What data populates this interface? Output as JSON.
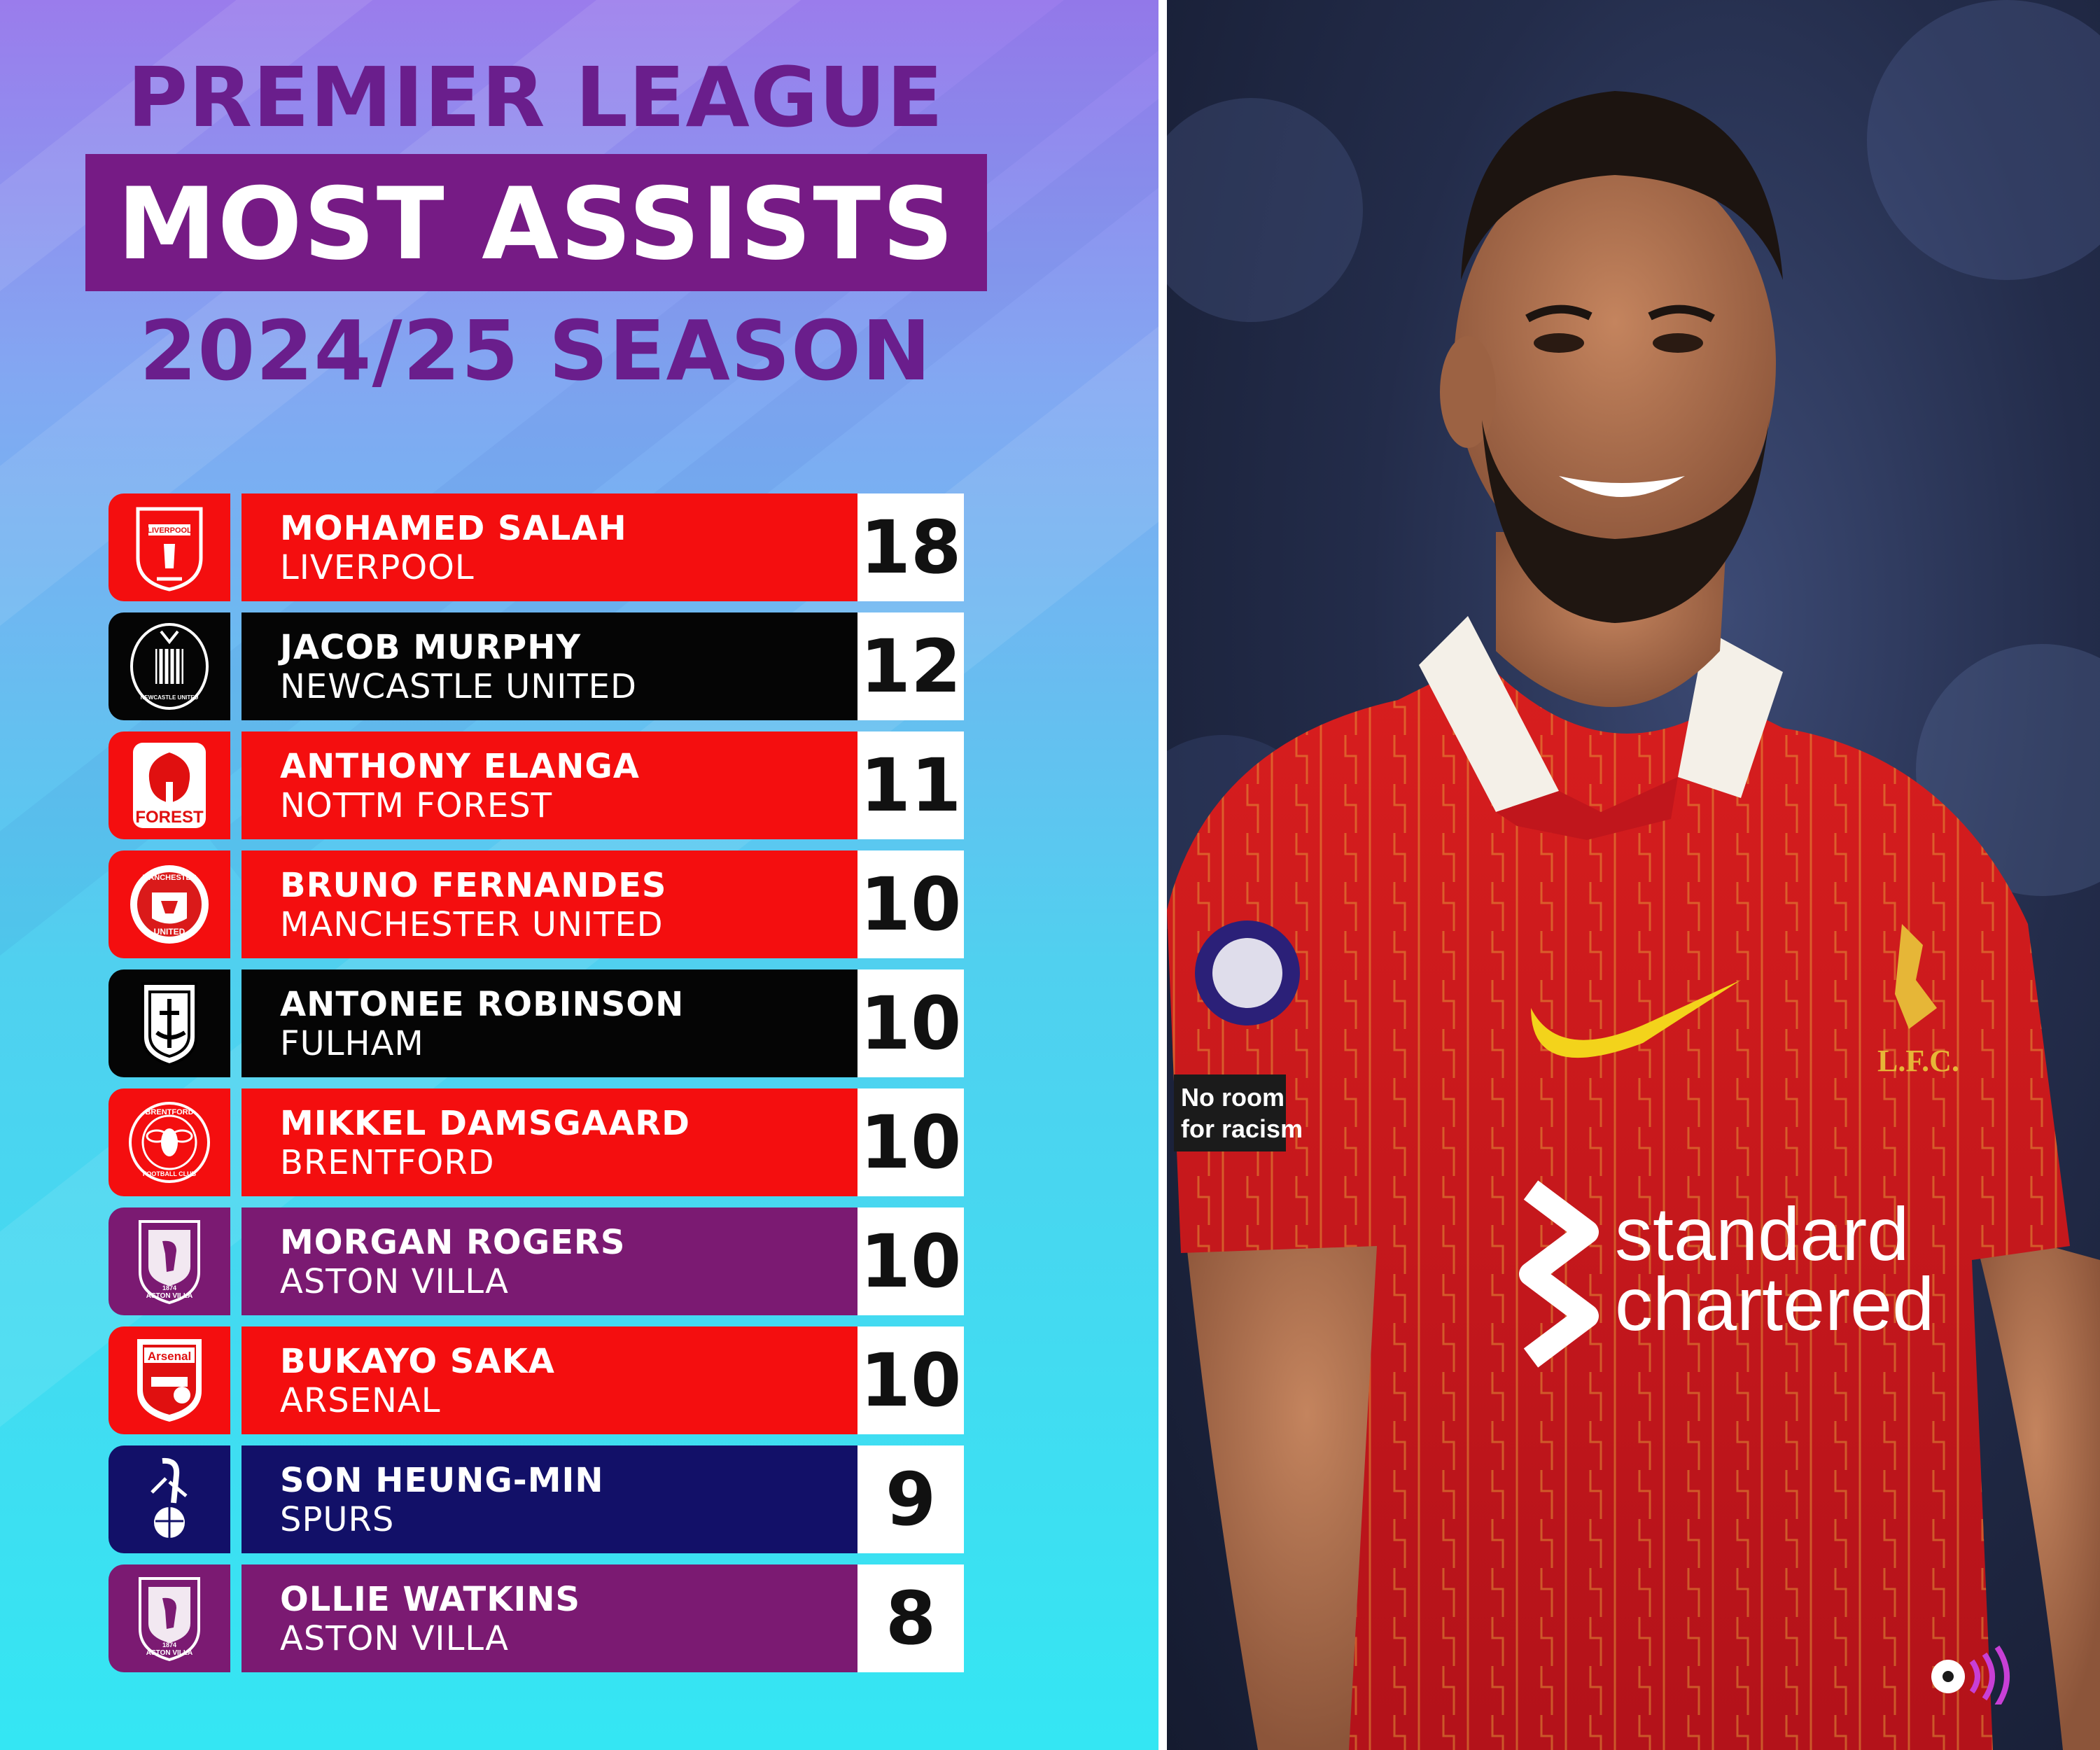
{
  "header": {
    "line1": "PREMIER LEAGUE",
    "line2": "MOST ASSISTS",
    "line3": "2024/25 SEASON"
  },
  "colors": {
    "purple_text": "#6a1e8c",
    "title_box": "#761b85",
    "red": "#f40e0f",
    "black": "#050505",
    "villa_purple": "#7b1a72",
    "spurs_navy": "#121068"
  },
  "players": [
    {
      "name": "MOHAMED SALAH",
      "club": "LIVERPOOL",
      "assists": "18",
      "color": "#f40e0f",
      "crest": "liverpool-crest-icon"
    },
    {
      "name": "JACOB MURPHY",
      "club": "NEWCASTLE UNITED",
      "assists": "12",
      "color": "#050505",
      "crest": "newcastle-crest-icon"
    },
    {
      "name": "ANTHONY ELANGA",
      "club": "NOTTM FOREST",
      "assists": "11",
      "color": "#f40e0f",
      "crest": "forest-crest-icon"
    },
    {
      "name": "BRUNO FERNANDES",
      "club": "MANCHESTER UNITED",
      "assists": "10",
      "color": "#f40e0f",
      "crest": "man-utd-crest-icon"
    },
    {
      "name": "ANTONEE ROBINSON",
      "club": "FULHAM",
      "assists": "10",
      "color": "#050505",
      "crest": "fulham-crest-icon"
    },
    {
      "name": "MIKKEL DAMSGAARD",
      "club": "BRENTFORD",
      "assists": "10",
      "color": "#f40e0f",
      "crest": "brentford-crest-icon"
    },
    {
      "name": "MORGAN ROGERS",
      "club": "ASTON VILLA",
      "assists": "10",
      "color": "#7b1a72",
      "crest": "aston-villa-crest-icon"
    },
    {
      "name": "BUKAYO SAKA",
      "club": "ARSENAL",
      "assists": "10",
      "color": "#f40e0f",
      "crest": "arsenal-crest-icon"
    },
    {
      "name": "SON HEUNG-MIN",
      "club": "SPURS",
      "assists": "9",
      "color": "#121068",
      "crest": "spurs-crest-icon"
    },
    {
      "name": "OLLIE WATKINS",
      "club": "ASTON VILLA",
      "assists": "8",
      "color": "#7b1a72",
      "crest": "aston-villa-crest-icon"
    }
  ],
  "crest_text": {
    "liverpool": "LIVERPOOL",
    "newcastle": "NEWCASTLE UNITED",
    "forest": "FOREST",
    "manutd_top": "MANCHESTER",
    "manutd_bottom": "UNITED",
    "brentford_top": "BRENTFORD",
    "brentford_bottom": "FOOTBALL CLUB",
    "villa_year": "1874",
    "villa": "ASTON VILLA",
    "arsenal": "Arsenal"
  },
  "photo": {
    "sponsor_line1": "standard",
    "sponsor_line2": "chartered",
    "sleeve_line1": "No room",
    "sleeve_line2": "for racism",
    "club_initials": "L.F.C."
  }
}
